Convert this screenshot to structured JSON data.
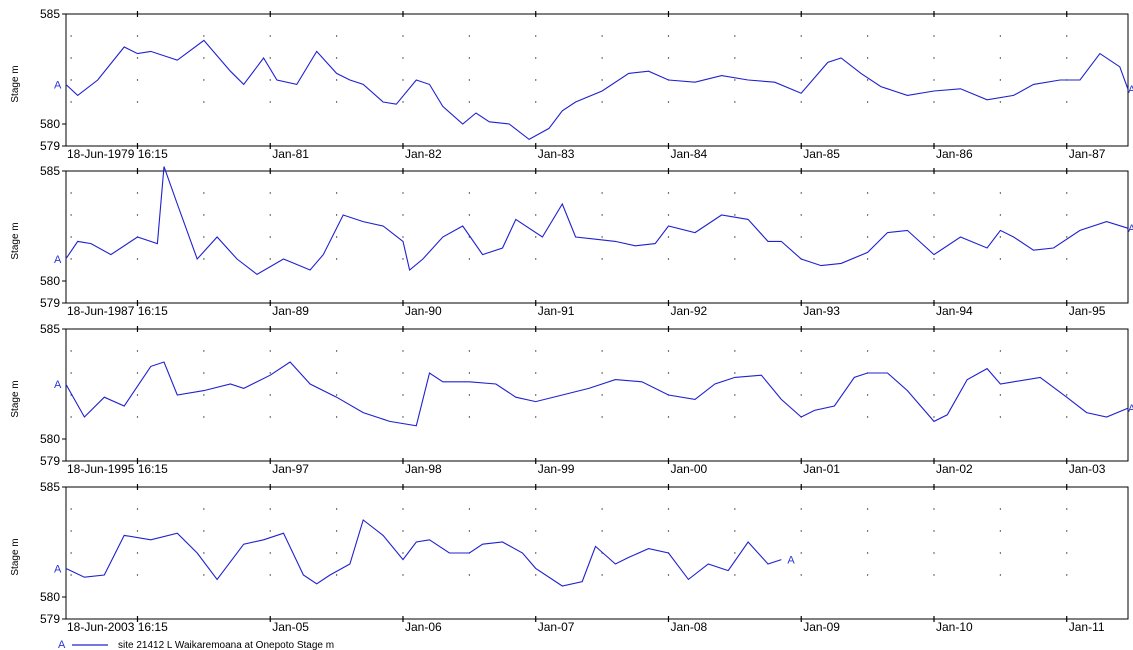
{
  "chart_data": {
    "type": "line",
    "ylabel": "Stage m",
    "y_ticks": [
      "585",
      "580",
      "579"
    ],
    "ylim": [
      579,
      585
    ],
    "series_marker": "A",
    "line_color": "#2020d0",
    "legend": {
      "marker": "A",
      "label": "site 21412 L Waikaremoana at Onepoto   Stage m",
      "placement": "bottom-left"
    },
    "panels": [
      {
        "start_label": "18-Jun-1979 16:15",
        "tick_labels": [
          "Jan-81",
          "Jan-82",
          "Jan-83",
          "Jan-84",
          "Jan-85",
          "Jan-86",
          "Jan-87"
        ],
        "x": [
          1979.46,
          1979.55,
          1979.7,
          1979.9,
          1980.0,
          1980.1,
          1980.3,
          1980.5,
          1980.7,
          1980.8,
          1980.95,
          1981.05,
          1981.2,
          1981.35,
          1981.5,
          1981.6,
          1981.7,
          1981.85,
          1981.95,
          1982.1,
          1982.2,
          1982.3,
          1982.45,
          1982.55,
          1982.65,
          1982.8,
          1982.95,
          1983.1,
          1983.2,
          1983.3,
          1983.5,
          1983.7,
          1983.85,
          1984.0,
          1984.2,
          1984.4,
          1984.6,
          1984.8,
          1985.0,
          1985.2,
          1985.3,
          1985.45,
          1985.6,
          1985.8,
          1986.0,
          1986.2,
          1986.4,
          1986.6,
          1986.75,
          1986.95,
          1987.1,
          1987.25,
          1987.4,
          1987.46
        ],
        "y": [
          581.8,
          581.3,
          582.0,
          583.5,
          583.2,
          583.3,
          582.9,
          583.8,
          582.4,
          581.8,
          583.0,
          582.0,
          581.8,
          583.3,
          582.3,
          582.0,
          581.8,
          581.0,
          580.9,
          582.0,
          581.8,
          580.8,
          580.0,
          580.5,
          580.1,
          580.0,
          579.3,
          579.8,
          580.6,
          581.0,
          581.5,
          582.3,
          582.4,
          582.0,
          581.9,
          582.2,
          582.0,
          581.9,
          581.4,
          582.8,
          583.0,
          582.3,
          581.7,
          581.3,
          581.5,
          581.6,
          581.1,
          581.3,
          581.8,
          582.0,
          582.0,
          583.2,
          582.6,
          581.6
        ]
      },
      {
        "start_label": "18-Jun-1987 16:15",
        "tick_labels": [
          "Jan-89",
          "Jan-90",
          "Jan-91",
          "Jan-92",
          "Jan-93",
          "Jan-94",
          "Jan-95"
        ],
        "x": [
          1987.46,
          1987.55,
          1987.65,
          1987.8,
          1988.0,
          1988.15,
          1988.2,
          1988.3,
          1988.45,
          1988.6,
          1988.75,
          1988.9,
          1989.1,
          1989.3,
          1989.4,
          1989.55,
          1989.7,
          1989.85,
          1990.0,
          1990.05,
          1990.15,
          1990.3,
          1990.45,
          1990.6,
          1990.75,
          1990.85,
          1991.05,
          1991.2,
          1991.3,
          1991.45,
          1991.6,
          1991.75,
          1991.9,
          1992.0,
          1992.2,
          1992.4,
          1992.6,
          1992.75,
          1992.85,
          1993.0,
          1993.15,
          1993.3,
          1993.5,
          1993.65,
          1993.8,
          1994.0,
          1994.2,
          1994.4,
          1994.5,
          1994.6,
          1994.75,
          1994.9,
          1995.1,
          1995.3,
          1995.46
        ],
        "y": [
          581.0,
          581.8,
          581.7,
          581.2,
          582.0,
          581.7,
          585.2,
          583.5,
          581.0,
          582.0,
          581.0,
          580.3,
          581.0,
          580.5,
          581.2,
          583.0,
          582.7,
          582.5,
          581.8,
          580.5,
          581.0,
          582.0,
          582.5,
          581.2,
          581.5,
          582.8,
          582.0,
          583.5,
          582.0,
          581.9,
          581.8,
          581.6,
          581.7,
          582.5,
          582.2,
          583.0,
          582.8,
          581.8,
          581.8,
          581.0,
          580.7,
          580.8,
          581.3,
          582.2,
          582.3,
          581.2,
          582.0,
          581.5,
          582.3,
          582.0,
          581.4,
          581.5,
          582.3,
          582.7,
          582.4
        ]
      },
      {
        "start_label": "18-Jun-1995 16:15",
        "tick_labels": [
          "Jan-97",
          "Jan-98",
          "Jan-99",
          "Jan-00",
          "Jan-01",
          "Jan-02",
          "Jan-03"
        ],
        "x": [
          1995.46,
          1995.6,
          1995.75,
          1995.9,
          1996.1,
          1996.2,
          1996.3,
          1996.5,
          1996.7,
          1996.8,
          1997.0,
          1997.15,
          1997.3,
          1997.5,
          1997.7,
          1997.9,
          1998.1,
          1998.2,
          1998.3,
          1998.5,
          1998.7,
          1998.85,
          1999.0,
          1999.2,
          1999.4,
          1999.6,
          1999.8,
          2000.0,
          2000.2,
          2000.35,
          2000.5,
          2000.7,
          2000.85,
          2001.0,
          2001.1,
          2001.25,
          2001.4,
          2001.5,
          2001.65,
          2001.8,
          2002.0,
          2002.1,
          2002.25,
          2002.4,
          2002.5,
          2002.6,
          2002.8,
          2003.0,
          2003.15,
          2003.3,
          2003.46
        ],
        "y": [
          582.5,
          581.0,
          581.9,
          581.5,
          583.3,
          583.5,
          582.0,
          582.2,
          582.5,
          582.3,
          582.9,
          583.5,
          582.5,
          581.9,
          581.2,
          580.8,
          580.6,
          583.0,
          582.6,
          582.6,
          582.5,
          581.9,
          581.7,
          582.0,
          582.3,
          582.7,
          582.6,
          582.0,
          581.8,
          582.5,
          582.8,
          582.9,
          581.8,
          581.0,
          581.3,
          581.5,
          582.8,
          583.0,
          583.0,
          582.2,
          580.8,
          581.1,
          582.7,
          583.2,
          582.5,
          582.6,
          582.8,
          581.9,
          581.2,
          581.0,
          581.4
        ]
      },
      {
        "start_label": "18-Jun-2003 16:15",
        "tick_labels": [
          "Jan-05",
          "Jan-06",
          "Jan-07",
          "Jan-08",
          "Jan-09",
          "Jan-10",
          "Jan-11"
        ],
        "x": [
          2003.46,
          2003.6,
          2003.75,
          2003.9,
          2004.1,
          2004.3,
          2004.45,
          2004.6,
          2004.8,
          2004.95,
          2005.1,
          2005.25,
          2005.35,
          2005.45,
          2005.6,
          2005.7,
          2005.85,
          2006.0,
          2006.1,
          2006.2,
          2006.35,
          2006.5,
          2006.6,
          2006.75,
          2006.9,
          2007.0,
          2007.2,
          2007.35,
          2007.45,
          2007.6,
          2007.7,
          2007.85,
          2008.0,
          2008.15,
          2008.3,
          2008.45,
          2008.6,
          2008.75,
          2008.85
        ],
        "y": [
          581.3,
          580.9,
          581.0,
          582.8,
          582.6,
          582.9,
          582.0,
          580.8,
          582.4,
          582.6,
          582.9,
          581.0,
          580.6,
          581.0,
          581.5,
          583.5,
          582.8,
          581.7,
          582.5,
          582.6,
          582.0,
          582.0,
          582.4,
          582.5,
          582.0,
          581.3,
          580.5,
          580.7,
          582.3,
          581.5,
          581.8,
          582.2,
          582.0,
          580.8,
          581.5,
          581.2,
          582.5,
          581.5,
          581.7
        ]
      }
    ]
  }
}
